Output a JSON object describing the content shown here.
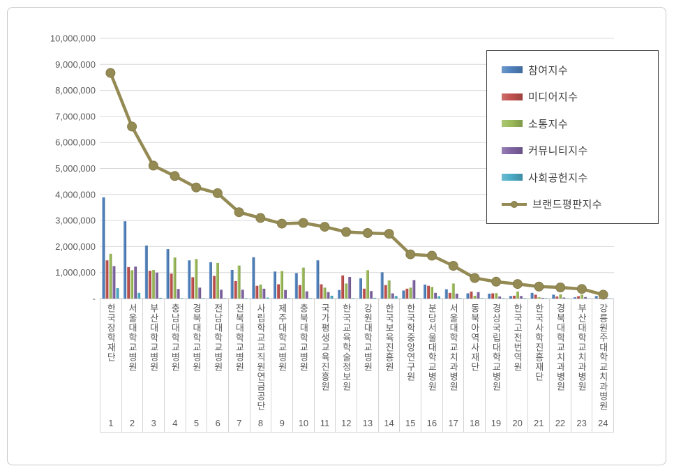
{
  "chart_data": {
    "type": "bar+line",
    "title": "",
    "legend_position": "top-right",
    "grid": true,
    "categories": [
      "한국장학재단",
      "서울대학교병원",
      "부산대학교병원",
      "충남대학교병원",
      "경북대학교병원",
      "전남대학교병원",
      "전북대학교병원",
      "사립학교교직원연금공단",
      "제주대학교병원",
      "충북대학교병원",
      "국가평생교육진흥원",
      "한국교육학술정보원",
      "강원대학교병원",
      "한국보육진흥원",
      "한국학중앙연구원",
      "분당서울대학교병원",
      "서울대학교치과병원",
      "동북아역사재단",
      "경상국립대학교병원",
      "한국고전번역원",
      "한국사학진흥재단",
      "경북대학교치과병원",
      "부산대학교치과병원",
      "강릉원주대학교치과병원"
    ],
    "rank_labels": [
      "1",
      "2",
      "3",
      "4",
      "5",
      "6",
      "7",
      "8",
      "9",
      "10",
      "11",
      "12",
      "13",
      "14",
      "15",
      "16",
      "17",
      "18",
      "19",
      "20",
      "21",
      "22",
      "23",
      "24"
    ],
    "y_axis": {
      "min": 0,
      "max": 10000000,
      "step": 1000000,
      "tick_labels": [
        "-",
        "1,000,000",
        "2,000,000",
        "3,000,000",
        "4,000,000",
        "5,000,000",
        "6,000,000",
        "7,000,000",
        "8,000,000",
        "9,000,000",
        "10,000,000"
      ]
    },
    "bar_series": [
      {
        "key": "participation-index",
        "name": "참여지수",
        "color": "#4F81BD",
        "values": [
          3890000,
          2970000,
          2040000,
          1900000,
          1470000,
          1400000,
          1100000,
          1590000,
          1040000,
          980000,
          1470000,
          330000,
          780000,
          1010000,
          310000,
          540000,
          360000,
          200000,
          190000,
          100000,
          220000,
          150000,
          50000,
          100000
        ]
      },
      {
        "key": "media-index",
        "name": "미디어지수",
        "color": "#C0504D",
        "values": [
          1470000,
          1210000,
          1070000,
          960000,
          820000,
          870000,
          670000,
          490000,
          550000,
          520000,
          550000,
          890000,
          380000,
          520000,
          380000,
          490000,
          220000,
          270000,
          200000,
          110000,
          150000,
          80000,
          90000,
          30000
        ]
      },
      {
        "key": "communication-index",
        "name": "소통지수",
        "color": "#9BBB59",
        "values": [
          1720000,
          1090000,
          1100000,
          1580000,
          1520000,
          1370000,
          1270000,
          540000,
          1060000,
          1190000,
          420000,
          580000,
          1090000,
          700000,
          420000,
          450000,
          580000,
          110000,
          210000,
          270000,
          50000,
          160000,
          150000,
          20000
        ]
      },
      {
        "key": "community-index",
        "name": "커뮤니티지수",
        "color": "#8064A2",
        "values": [
          1250000,
          1230000,
          1000000,
          370000,
          420000,
          340000,
          340000,
          380000,
          330000,
          280000,
          250000,
          830000,
          290000,
          200000,
          710000,
          220000,
          190000,
          250000,
          80000,
          100000,
          30000,
          40000,
          60000,
          20000
        ]
      },
      {
        "key": "social-contribution-index",
        "name": "사회공헌지수",
        "color": "#4BACC6",
        "values": [
          400000,
          220000,
          30000,
          20000,
          20000,
          20000,
          20000,
          40000,
          20000,
          20000,
          110000,
          20000,
          30000,
          100000,
          20000,
          90000,
          20000,
          20000,
          20000,
          20000,
          20000,
          10000,
          10000,
          10000
        ]
      }
    ],
    "line_series": {
      "key": "brand-reputation-index",
      "name": "브랜드평판지수",
      "color": "#948A54",
      "marker_stroke": "#857C49",
      "values": [
        8670000,
        6610000,
        5110000,
        4710000,
        4270000,
        4050000,
        3320000,
        3100000,
        2880000,
        2910000,
        2760000,
        2560000,
        2520000,
        2490000,
        1700000,
        1650000,
        1260000,
        790000,
        650000,
        560000,
        460000,
        430000,
        370000,
        150000
      ]
    },
    "colors": {
      "gridline": "#D9D9D9",
      "baseline": "#C0C0C0",
      "axis_text": "#595959",
      "divider": "#D4D4D4",
      "legend_border": "#404040",
      "legend_text": "#404040"
    }
  }
}
